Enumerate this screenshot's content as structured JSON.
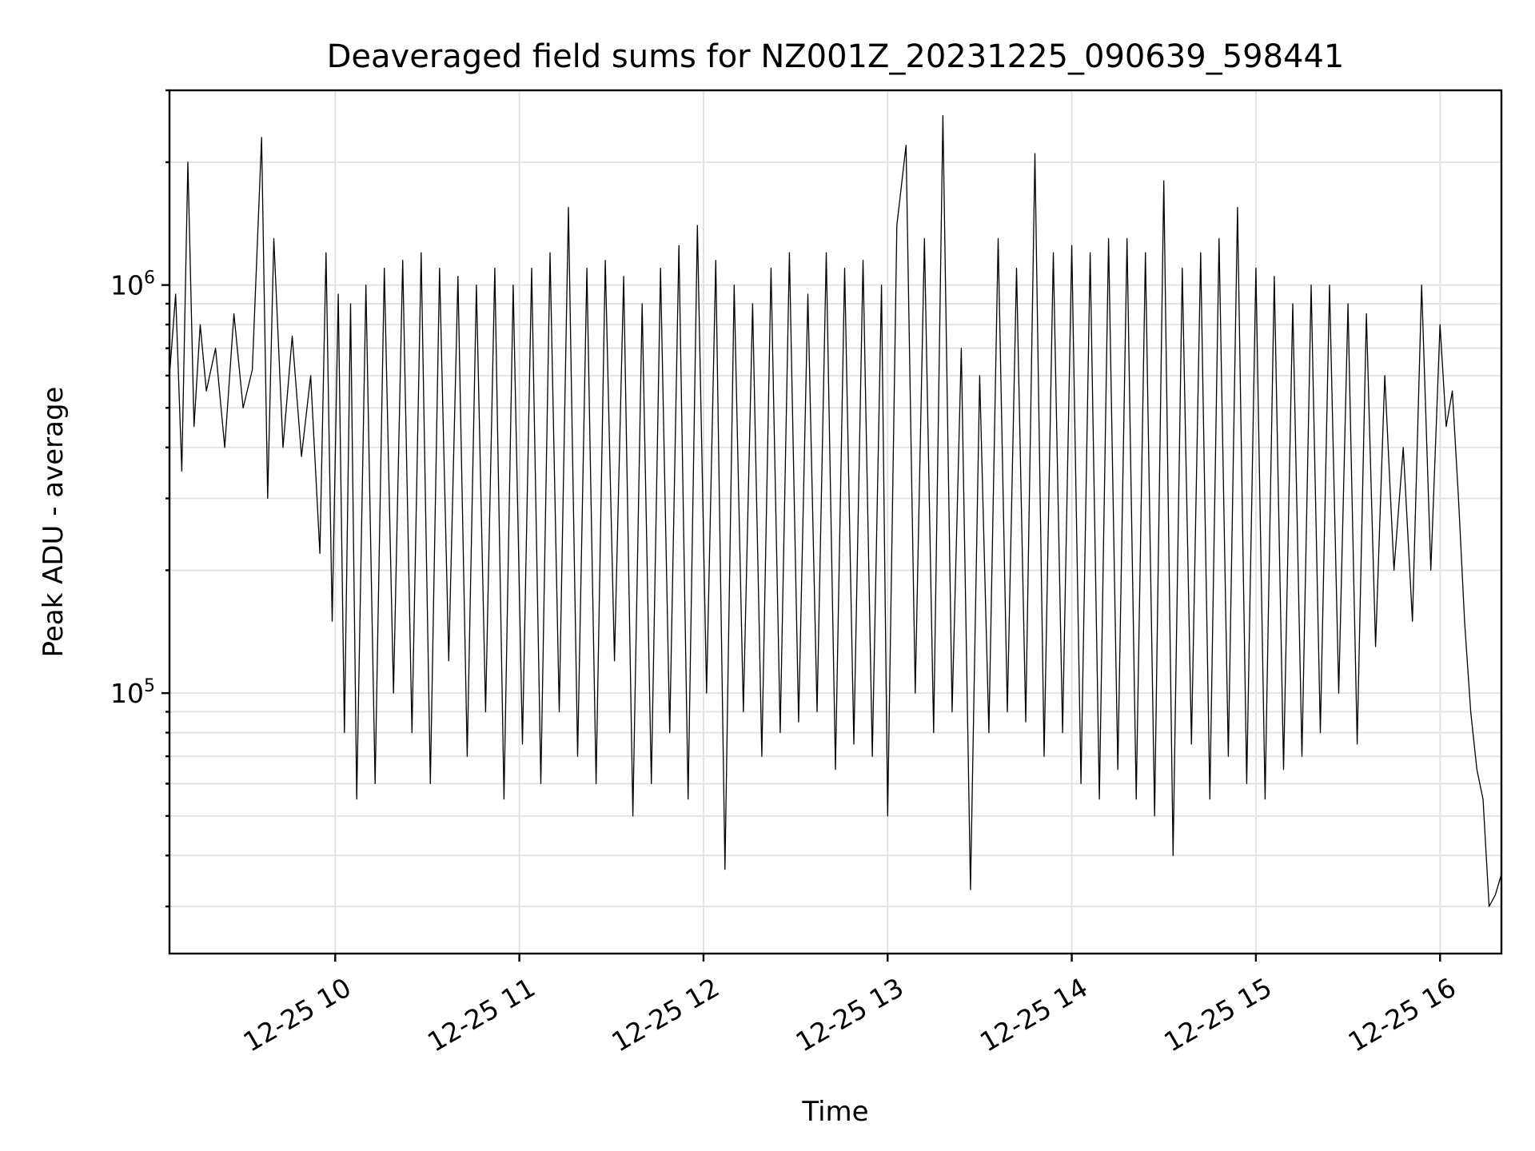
{
  "chart_data": {
    "type": "line",
    "title": "Deaveraged field sums for NZ001Z_20231225_090639_598441",
    "xlabel": "Time",
    "ylabel": "Peak ADU - average",
    "yscale": "log",
    "grid": "major and minor on both axes",
    "legend": "none",
    "line_color": "#000000",
    "grid_color": "#e3e3e3",
    "x_range": [
      "2023-12-25 09:06",
      "2023-12-25 16:20"
    ],
    "ylim": [
      23000,
      3000000
    ],
    "x_ticks": [
      {
        "t": "2023-12-25 10:00",
        "label": "12-25 10"
      },
      {
        "t": "2023-12-25 11:00",
        "label": "12-25 11"
      },
      {
        "t": "2023-12-25 12:00",
        "label": "12-25 12"
      },
      {
        "t": "2023-12-25 13:00",
        "label": "12-25 13"
      },
      {
        "t": "2023-12-25 14:00",
        "label": "12-25 14"
      },
      {
        "t": "2023-12-25 15:00",
        "label": "12-25 15"
      },
      {
        "t": "2023-12-25 16:00",
        "label": "12-25 16"
      }
    ],
    "y_ticks": [
      {
        "value": 100000,
        "base": "10",
        "exp": "5"
      },
      {
        "value": 1000000,
        "base": "10",
        "exp": "6"
      }
    ],
    "series": [
      {
        "points": [
          [
            "2023-12-25 09:06",
            600000
          ],
          [
            "2023-12-25 09:08",
            950000
          ],
          [
            "2023-12-25 09:10",
            350000
          ],
          [
            "2023-12-25 09:12",
            2000000
          ],
          [
            "2023-12-25 09:14",
            450000
          ],
          [
            "2023-12-25 09:16",
            800000
          ],
          [
            "2023-12-25 09:18",
            550000
          ],
          [
            "2023-12-25 09:21",
            700000
          ],
          [
            "2023-12-25 09:24",
            400000
          ],
          [
            "2023-12-25 09:27",
            850000
          ],
          [
            "2023-12-25 09:30",
            500000
          ],
          [
            "2023-12-25 09:33",
            620000
          ],
          [
            "2023-12-25 09:36",
            2300000
          ],
          [
            "2023-12-25 09:38",
            300000
          ],
          [
            "2023-12-25 09:40",
            1300000
          ],
          [
            "2023-12-25 09:43",
            400000
          ],
          [
            "2023-12-25 09:46",
            750000
          ],
          [
            "2023-12-25 09:49",
            380000
          ],
          [
            "2023-12-25 09:52",
            600000
          ],
          [
            "2023-12-25 09:55",
            220000
          ],
          [
            "2023-12-25 09:57",
            1200000
          ],
          [
            "2023-12-25 09:59",
            150000
          ],
          [
            "2023-12-25 10:01",
            950000
          ],
          [
            "2023-12-25 10:03",
            80000
          ],
          [
            "2023-12-25 10:05",
            900000
          ],
          [
            "2023-12-25 10:07",
            55000
          ],
          [
            "2023-12-25 10:10",
            1000000
          ],
          [
            "2023-12-25 10:13",
            60000
          ],
          [
            "2023-12-25 10:16",
            1100000
          ],
          [
            "2023-12-25 10:19",
            100000
          ],
          [
            "2023-12-25 10:22",
            1150000
          ],
          [
            "2023-12-25 10:25",
            80000
          ],
          [
            "2023-12-25 10:28",
            1200000
          ],
          [
            "2023-12-25 10:31",
            60000
          ],
          [
            "2023-12-25 10:34",
            1100000
          ],
          [
            "2023-12-25 10:37",
            120000
          ],
          [
            "2023-12-25 10:40",
            1050000
          ],
          [
            "2023-12-25 10:43",
            70000
          ],
          [
            "2023-12-25 10:46",
            1000000
          ],
          [
            "2023-12-25 10:49",
            90000
          ],
          [
            "2023-12-25 10:52",
            1100000
          ],
          [
            "2023-12-25 10:55",
            55000
          ],
          [
            "2023-12-25 10:58",
            1000000
          ],
          [
            "2023-12-25 11:01",
            75000
          ],
          [
            "2023-12-25 11:04",
            1100000
          ],
          [
            "2023-12-25 11:07",
            60000
          ],
          [
            "2023-12-25 11:10",
            1200000
          ],
          [
            "2023-12-25 11:13",
            90000
          ],
          [
            "2023-12-25 11:16",
            1550000
          ],
          [
            "2023-12-25 11:19",
            70000
          ],
          [
            "2023-12-25 11:22",
            1100000
          ],
          [
            "2023-12-25 11:25",
            60000
          ],
          [
            "2023-12-25 11:28",
            1150000
          ],
          [
            "2023-12-25 11:31",
            120000
          ],
          [
            "2023-12-25 11:34",
            1050000
          ],
          [
            "2023-12-25 11:37",
            50000
          ],
          [
            "2023-12-25 11:40",
            900000
          ],
          [
            "2023-12-25 11:43",
            60000
          ],
          [
            "2023-12-25 11:46",
            1100000
          ],
          [
            "2023-12-25 11:49",
            80000
          ],
          [
            "2023-12-25 11:52",
            1250000
          ],
          [
            "2023-12-25 11:55",
            55000
          ],
          [
            "2023-12-25 11:58",
            1400000
          ],
          [
            "2023-12-25 12:01",
            100000
          ],
          [
            "2023-12-25 12:04",
            1150000
          ],
          [
            "2023-12-25 12:07",
            37000
          ],
          [
            "2023-12-25 12:10",
            1000000
          ],
          [
            "2023-12-25 12:13",
            90000
          ],
          [
            "2023-12-25 12:16",
            900000
          ],
          [
            "2023-12-25 12:19",
            70000
          ],
          [
            "2023-12-25 12:22",
            1100000
          ],
          [
            "2023-12-25 12:25",
            80000
          ],
          [
            "2023-12-25 12:28",
            1200000
          ],
          [
            "2023-12-25 12:31",
            85000
          ],
          [
            "2023-12-25 12:34",
            950000
          ],
          [
            "2023-12-25 12:37",
            90000
          ],
          [
            "2023-12-25 12:40",
            1200000
          ],
          [
            "2023-12-25 12:43",
            65000
          ],
          [
            "2023-12-25 12:46",
            1100000
          ],
          [
            "2023-12-25 12:49",
            75000
          ],
          [
            "2023-12-25 12:52",
            1150000
          ],
          [
            "2023-12-25 12:55",
            70000
          ],
          [
            "2023-12-25 12:58",
            1000000
          ],
          [
            "2023-12-25 13:00",
            50000
          ],
          [
            "2023-12-25 13:03",
            1400000
          ],
          [
            "2023-12-25 13:06",
            2200000
          ],
          [
            "2023-12-25 13:09",
            100000
          ],
          [
            "2023-12-25 13:12",
            1300000
          ],
          [
            "2023-12-25 13:15",
            80000
          ],
          [
            "2023-12-25 13:18",
            2600000
          ],
          [
            "2023-12-25 13:21",
            90000
          ],
          [
            "2023-12-25 13:24",
            700000
          ],
          [
            "2023-12-25 13:27",
            33000
          ],
          [
            "2023-12-25 13:30",
            600000
          ],
          [
            "2023-12-25 13:33",
            80000
          ],
          [
            "2023-12-25 13:36",
            1300000
          ],
          [
            "2023-12-25 13:39",
            90000
          ],
          [
            "2023-12-25 13:42",
            1100000
          ],
          [
            "2023-12-25 13:45",
            85000
          ],
          [
            "2023-12-25 13:48",
            2100000
          ],
          [
            "2023-12-25 13:51",
            70000
          ],
          [
            "2023-12-25 13:54",
            1200000
          ],
          [
            "2023-12-25 13:57",
            80000
          ],
          [
            "2023-12-25 14:00",
            1250000
          ],
          [
            "2023-12-25 14:03",
            60000
          ],
          [
            "2023-12-25 14:06",
            1200000
          ],
          [
            "2023-12-25 14:09",
            55000
          ],
          [
            "2023-12-25 14:12",
            1300000
          ],
          [
            "2023-12-25 14:15",
            65000
          ],
          [
            "2023-12-25 14:18",
            1300000
          ],
          [
            "2023-12-25 14:21",
            55000
          ],
          [
            "2023-12-25 14:24",
            1200000
          ],
          [
            "2023-12-25 14:27",
            50000
          ],
          [
            "2023-12-25 14:30",
            1800000
          ],
          [
            "2023-12-25 14:33",
            40000
          ],
          [
            "2023-12-25 14:36",
            1100000
          ],
          [
            "2023-12-25 14:39",
            75000
          ],
          [
            "2023-12-25 14:42",
            1200000
          ],
          [
            "2023-12-25 14:45",
            55000
          ],
          [
            "2023-12-25 14:48",
            1300000
          ],
          [
            "2023-12-25 14:51",
            70000
          ],
          [
            "2023-12-25 14:54",
            1550000
          ],
          [
            "2023-12-25 14:57",
            60000
          ],
          [
            "2023-12-25 15:00",
            1100000
          ],
          [
            "2023-12-25 15:03",
            55000
          ],
          [
            "2023-12-25 15:06",
            1050000
          ],
          [
            "2023-12-25 15:09",
            65000
          ],
          [
            "2023-12-25 15:12",
            900000
          ],
          [
            "2023-12-25 15:15",
            70000
          ],
          [
            "2023-12-25 15:18",
            1000000
          ],
          [
            "2023-12-25 15:21",
            80000
          ],
          [
            "2023-12-25 15:24",
            1000000
          ],
          [
            "2023-12-25 15:27",
            100000
          ],
          [
            "2023-12-25 15:30",
            900000
          ],
          [
            "2023-12-25 15:33",
            75000
          ],
          [
            "2023-12-25 15:36",
            850000
          ],
          [
            "2023-12-25 15:39",
            130000
          ],
          [
            "2023-12-25 15:42",
            600000
          ],
          [
            "2023-12-25 15:45",
            200000
          ],
          [
            "2023-12-25 15:48",
            400000
          ],
          [
            "2023-12-25 15:51",
            150000
          ],
          [
            "2023-12-25 15:54",
            1000000
          ],
          [
            "2023-12-25 15:57",
            200000
          ],
          [
            "2023-12-25 16:00",
            800000
          ],
          [
            "2023-12-25 16:02",
            450000
          ],
          [
            "2023-12-25 16:04",
            550000
          ],
          [
            "2023-12-25 16:06",
            300000
          ],
          [
            "2023-12-25 16:08",
            150000
          ],
          [
            "2023-12-25 16:10",
            90000
          ],
          [
            "2023-12-25 16:12",
            65000
          ],
          [
            "2023-12-25 16:14",
            55000
          ],
          [
            "2023-12-25 16:16",
            30000
          ],
          [
            "2023-12-25 16:18",
            32000
          ],
          [
            "2023-12-25 16:20",
            36000
          ]
        ]
      }
    ]
  }
}
